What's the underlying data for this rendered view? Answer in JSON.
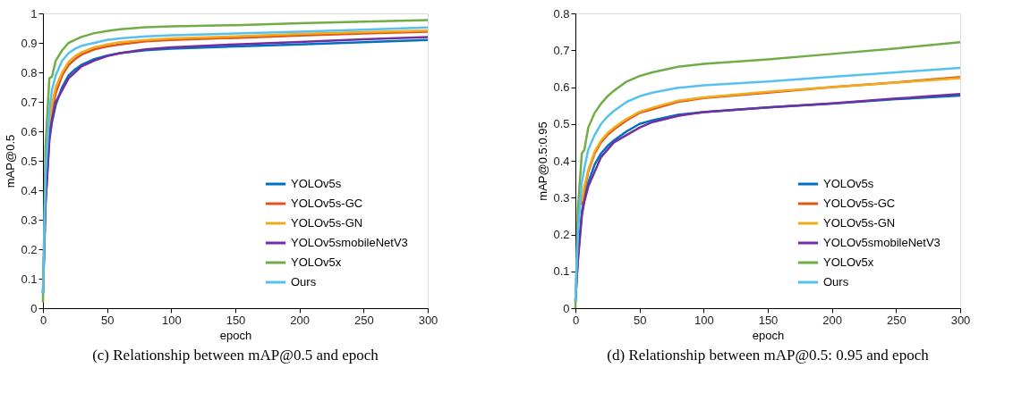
{
  "chart_data": [
    {
      "type": "line",
      "ylabel": "mAP@0.5",
      "xlabel": "epoch",
      "annotations": [
        "(c) Relationship between mAP@0.5 and epoch"
      ],
      "x": [
        0,
        2,
        5,
        7,
        10,
        15,
        20,
        25,
        30,
        40,
        50,
        60,
        80,
        100,
        150,
        200,
        250,
        300
      ],
      "xlim": [
        0,
        300
      ],
      "xticks": [
        0,
        50,
        100,
        150,
        200,
        250,
        300
      ],
      "ylim": [
        0,
        1
      ],
      "yticks": [
        0,
        0.1,
        0.2,
        0.3,
        0.4,
        0.5,
        0.6,
        0.7,
        0.8,
        0.9,
        1
      ],
      "grid": false,
      "legend": "bottom right",
      "line_style": "solid",
      "series": [
        {
          "name": "YOLOv5s",
          "color": "#0070c0",
          "values": [
            0.05,
            0.35,
            0.57,
            0.63,
            0.69,
            0.75,
            0.79,
            0.81,
            0.825,
            0.845,
            0.857,
            0.865,
            0.875,
            0.88,
            0.888,
            0.895,
            0.902,
            0.91
          ]
        },
        {
          "name": "YOLOv5s-GC",
          "color": "#e0541b",
          "values": [
            null,
            null,
            0.6,
            0.67,
            0.73,
            0.79,
            0.825,
            0.845,
            0.86,
            0.878,
            0.888,
            0.895,
            0.905,
            0.91,
            0.917,
            0.925,
            0.932,
            0.938
          ]
        },
        {
          "name": "YOLOv5s-GN",
          "color": "#f0ab1e",
          "values": [
            null,
            null,
            0.62,
            0.69,
            0.75,
            0.8,
            0.835,
            0.855,
            0.868,
            0.885,
            0.895,
            0.902,
            0.91,
            0.915,
            0.922,
            0.93,
            0.936,
            0.942
          ]
        },
        {
          "name": "YOLOv5smobileNetV3",
          "color": "#7030a0",
          "values": [
            0.05,
            0.36,
            0.58,
            0.64,
            0.7,
            0.74,
            0.78,
            0.8,
            0.82,
            0.84,
            0.855,
            0.865,
            0.878,
            0.885,
            0.895,
            0.903,
            0.912,
            0.92
          ]
        },
        {
          "name": "YOLOv5x",
          "color": "#70ad47",
          "values": [
            0.02,
            0.55,
            0.78,
            0.785,
            0.84,
            0.875,
            0.9,
            0.91,
            0.92,
            0.933,
            0.94,
            0.946,
            0.953,
            0.956,
            0.96,
            0.967,
            0.972,
            0.977
          ]
        },
        {
          "name": "Ours",
          "color": "#56c1ef",
          "values": [
            0.05,
            0.45,
            0.67,
            0.74,
            0.79,
            0.84,
            0.865,
            0.88,
            0.89,
            0.9,
            0.91,
            0.915,
            0.922,
            0.926,
            0.932,
            0.938,
            0.945,
            0.952
          ]
        }
      ]
    },
    {
      "type": "line",
      "ylabel": "mAP@0.5:0.95",
      "xlabel": "epoch",
      "annotations": [
        "(d) Relationship between mAP@0.5: 0.95 and epoch"
      ],
      "x": [
        0,
        2,
        5,
        7,
        10,
        15,
        20,
        25,
        30,
        40,
        50,
        60,
        80,
        100,
        150,
        200,
        250,
        300
      ],
      "xlim": [
        0,
        300
      ],
      "xticks": [
        0,
        50,
        100,
        150,
        200,
        250,
        300
      ],
      "ylim": [
        0,
        0.8
      ],
      "yticks": [
        0,
        0.1,
        0.2,
        0.3,
        0.4,
        0.5,
        0.6,
        0.7,
        0.8
      ],
      "grid": false,
      "legend": "bottom right",
      "line_style": "solid",
      "series": [
        {
          "name": "YOLOv5s",
          "color": "#0070c0",
          "values": [
            0.02,
            0.14,
            0.26,
            0.3,
            0.34,
            0.39,
            0.42,
            0.44,
            0.455,
            0.48,
            0.5,
            0.51,
            0.525,
            0.532,
            0.545,
            0.555,
            0.567,
            0.577
          ]
        },
        {
          "name": "YOLOv5s-GC",
          "color": "#e0541b",
          "values": [
            null,
            null,
            0.28,
            0.32,
            0.37,
            0.42,
            0.45,
            0.47,
            0.485,
            0.51,
            0.53,
            0.54,
            0.56,
            0.57,
            0.585,
            0.6,
            0.613,
            0.627
          ]
        },
        {
          "name": "YOLOv5s-GN",
          "color": "#f0ab1e",
          "values": [
            null,
            null,
            0.29,
            0.33,
            0.375,
            0.425,
            0.455,
            0.475,
            0.49,
            0.514,
            0.533,
            0.544,
            0.563,
            0.572,
            0.587,
            0.6,
            0.612,
            0.624
          ]
        },
        {
          "name": "YOLOv5smobileNetV3",
          "color": "#7030a0",
          "values": [
            0.02,
            0.13,
            0.25,
            0.29,
            0.33,
            0.37,
            0.41,
            0.43,
            0.45,
            0.47,
            0.49,
            0.505,
            0.522,
            0.532,
            0.545,
            0.556,
            0.569,
            0.581
          ]
        },
        {
          "name": "YOLOv5x",
          "color": "#70ad47",
          "values": [
            0.0,
            0.27,
            0.42,
            0.43,
            0.49,
            0.53,
            0.555,
            0.575,
            0.59,
            0.615,
            0.63,
            0.64,
            0.655,
            0.663,
            0.675,
            0.69,
            0.705,
            0.722
          ]
        },
        {
          "name": "Ours",
          "color": "#56c1ef",
          "values": [
            0.02,
            0.21,
            0.34,
            0.38,
            0.43,
            0.47,
            0.5,
            0.52,
            0.535,
            0.56,
            0.575,
            0.585,
            0.598,
            0.605,
            0.615,
            0.628,
            0.64,
            0.652
          ]
        }
      ]
    }
  ]
}
